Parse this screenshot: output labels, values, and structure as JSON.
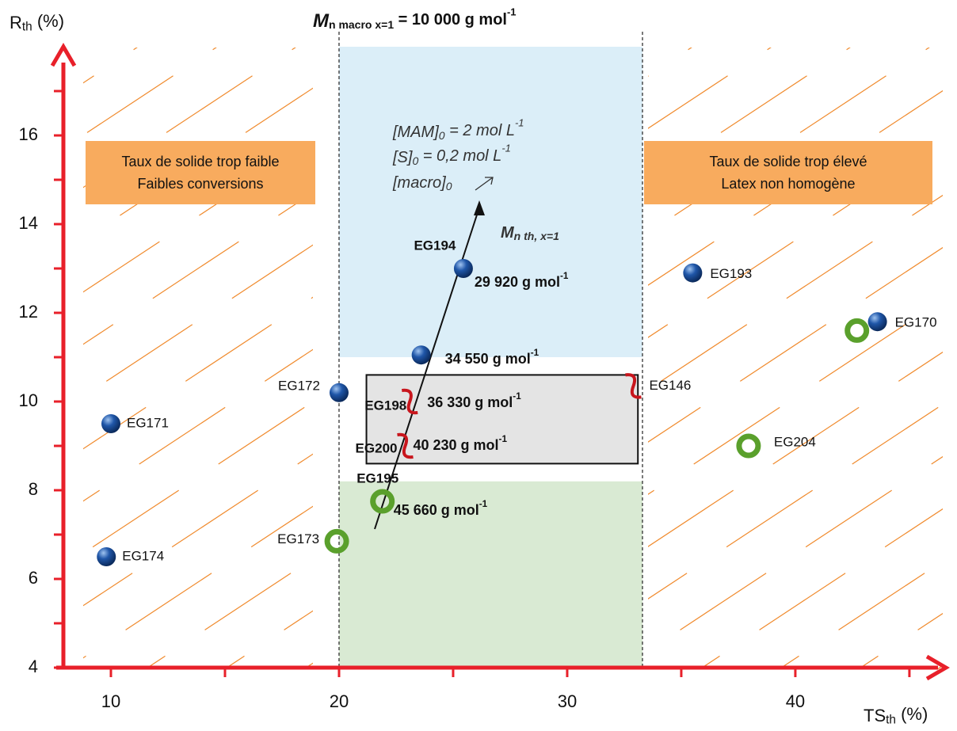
{
  "chart_data": {
    "type": "scatter",
    "title": [
      {
        "t": "M",
        "s": "sym"
      },
      {
        "t": "n macro x=1",
        "s": "sub"
      },
      {
        "t": " = 10 000 g mol",
        "s": ""
      },
      {
        "t": "-1",
        "s": "sup"
      }
    ],
    "y_label": [
      {
        "t": "R",
        "s": ""
      },
      {
        "t": "th",
        "s": "sub"
      },
      {
        "t": " (%)",
        "s": ""
      }
    ],
    "x_label": [
      {
        "t": "TS",
        "s": ""
      },
      {
        "t": "th",
        "s": "sub"
      },
      {
        "t": " (%)",
        "s": ""
      }
    ],
    "xlim": [
      7.6,
      46.6
    ],
    "ylim": [
      4,
      18
    ],
    "xticks": [
      10,
      20,
      30,
      40
    ],
    "x_minor_ticks": [
      15,
      25,
      35,
      45
    ],
    "yticks": [
      4,
      6,
      8,
      10,
      12,
      14,
      16
    ],
    "y_minor_ticks": [
      5,
      7,
      9,
      11,
      13,
      15,
      17
    ],
    "axis_color": "#e8202a",
    "zone_x": [
      20,
      33.3
    ],
    "blue_zone_y": [
      11,
      18
    ],
    "green_zone_y": [
      4,
      8.2
    ],
    "grey_box": {
      "x": [
        21.2,
        33.1
      ],
      "y": [
        8.6,
        10.6
      ]
    },
    "zone_colors": {
      "blue": "#dbeef8",
      "green": "#d9ead3",
      "grey": "#e4e4e4",
      "hatch": "#f08a2c",
      "box": "#f8ab5e"
    },
    "marker_colors": {
      "sphere": "#1f56a8",
      "ring": "#5aa02c",
      "worm": "#c8161d"
    },
    "labels": [
      "EG171",
      "EG174",
      "EG172",
      "EG173",
      "EG195",
      "EG200",
      "EG198",
      null,
      "EG194",
      "EG146",
      "EG193",
      "EG204",
      "EG170",
      null
    ],
    "x": [
      10,
      9.8,
      20,
      19.9,
      21.9,
      22.9,
      23.1,
      23.6,
      25.45,
      32.9,
      35.5,
      37.95,
      43.6,
      42.7
    ],
    "y": [
      9.5,
      6.5,
      10.2,
      6.85,
      7.75,
      9.0,
      10.0,
      11.05,
      13.0,
      10.35,
      12.9,
      9.0,
      11.8,
      11.6
    ],
    "markers": [
      "sphere",
      "sphere",
      "sphere",
      "ring",
      "ring",
      "worm",
      "worm",
      "sphere",
      "sphere",
      "worm",
      "sphere",
      "ring",
      "sphere",
      "ring"
    ],
    "mn": [
      null,
      null,
      null,
      null,
      45660,
      40230,
      36330,
      34550,
      29920,
      null,
      null,
      null,
      null,
      null
    ],
    "mn_labels": [
      null,
      null,
      null,
      null,
      "45 660 g mol",
      "40 230 g mol",
      "36 330 g mol",
      "34 550 g mol",
      "29 920 g mol",
      null,
      null,
      null,
      null,
      null
    ],
    "mn_unit_sup": "-1",
    "left_box": [
      "Taux de solide trop faible",
      "Faibles conversions"
    ],
    "right_box": [
      "Taux de solide trop élevé",
      "Latex non homogène"
    ],
    "conditions": [
      [
        {
          "t": "[MAM]",
          "s": ""
        },
        {
          "t": "0",
          "s": "sub"
        },
        {
          "t": " = 2 mol L",
          "s": ""
        },
        {
          "t": "-1",
          "s": "sup"
        }
      ],
      [
        {
          "t": "[S]",
          "s": ""
        },
        {
          "t": "0",
          "s": "sub"
        },
        {
          "t": " = 0,2 mol L",
          "s": ""
        },
        {
          "t": "-1",
          "s": "sup"
        }
      ],
      [
        {
          "t": "[macro]",
          "s": ""
        },
        {
          "t": "0",
          "s": "sub"
        }
      ]
    ],
    "arrow_label": [
      {
        "t": "M",
        "s": ""
      },
      {
        "t": "n th, x=1",
        "s": "sub"
      }
    ]
  }
}
